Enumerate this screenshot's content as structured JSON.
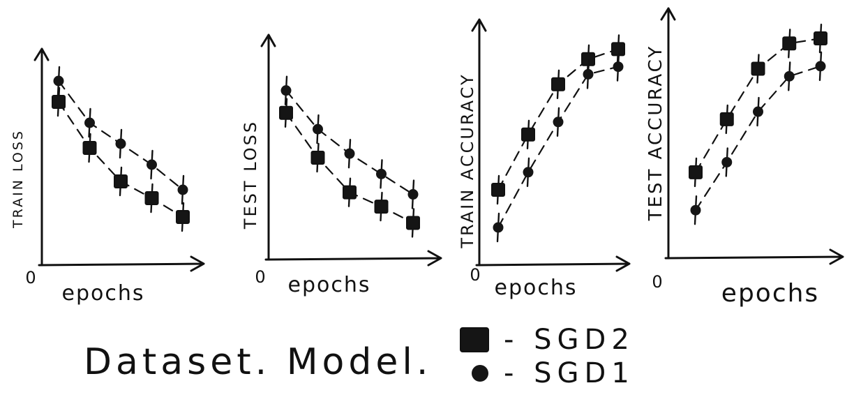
{
  "caption": "Dataset. Model.",
  "legend": [
    {
      "label": "- SGD2",
      "marker": "square"
    },
    {
      "label": "- SGD1",
      "marker": "circle"
    }
  ],
  "chart_data": [
    {
      "type": "scatter",
      "ylabel": "TRAIN LOSS",
      "xlabel": "epochs",
      "origin_label": "0",
      "x": [
        1,
        2,
        3,
        4,
        5
      ],
      "series": [
        {
          "name": "SGD2",
          "marker": "square",
          "values": [
            0.78,
            0.56,
            0.4,
            0.32,
            0.23
          ]
        },
        {
          "name": "SGD1",
          "marker": "circle",
          "values": [
            0.88,
            0.68,
            0.58,
            0.48,
            0.36
          ]
        }
      ]
    },
    {
      "type": "scatter",
      "ylabel": "TEST LOSS",
      "xlabel": "epochs",
      "origin_label": "0",
      "x": [
        1,
        2,
        3,
        4,
        5
      ],
      "series": [
        {
          "name": "SGD2",
          "marker": "square",
          "values": [
            0.72,
            0.5,
            0.33,
            0.26,
            0.18
          ]
        },
        {
          "name": "SGD1",
          "marker": "circle",
          "values": [
            0.83,
            0.64,
            0.52,
            0.42,
            0.32
          ]
        }
      ]
    },
    {
      "type": "scatter",
      "ylabel": "TRAIN ACCURACY",
      "xlabel": "epochs",
      "origin_label": "0",
      "x": [
        1,
        2,
        3,
        4,
        5
      ],
      "series": [
        {
          "name": "SGD2",
          "marker": "square",
          "values": [
            0.3,
            0.52,
            0.72,
            0.82,
            0.86
          ]
        },
        {
          "name": "SGD1",
          "marker": "circle",
          "values": [
            0.15,
            0.37,
            0.57,
            0.76,
            0.79
          ]
        }
      ]
    },
    {
      "type": "scatter",
      "ylabel": "TEST ACCURACY",
      "xlabel": "epochs",
      "origin_label": "0",
      "x": [
        1,
        2,
        3,
        4,
        5
      ],
      "series": [
        {
          "name": "SGD2",
          "marker": "square",
          "values": [
            0.34,
            0.55,
            0.75,
            0.85,
            0.87
          ]
        },
        {
          "name": "SGD1",
          "marker": "circle",
          "values": [
            0.19,
            0.38,
            0.58,
            0.72,
            0.76
          ]
        }
      ]
    }
  ]
}
